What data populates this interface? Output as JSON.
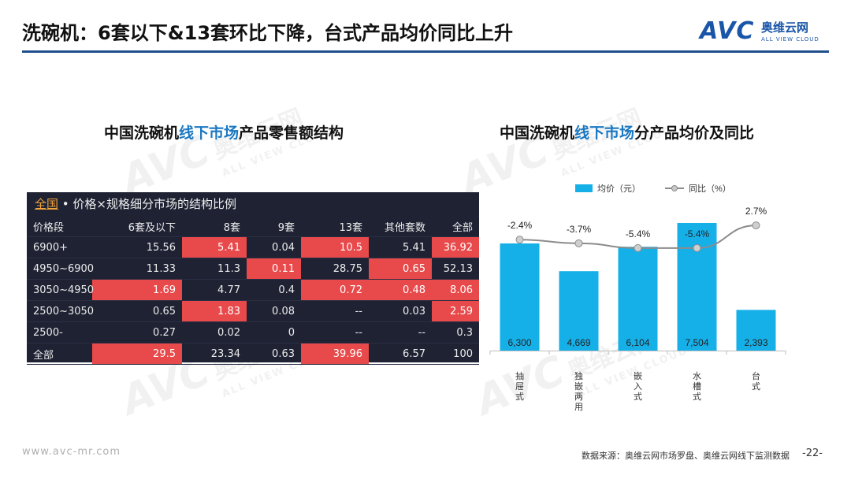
{
  "header": {
    "title": "洗碗机：6套以下&13套环比下降，台式产品均价同比上升",
    "logo_mark": "AVC",
    "logo_cn": "奥维云网",
    "logo_en": "ALL VIEW CLOUD"
  },
  "watermark": {
    "mark": "AVC",
    "cn": "奥维云网",
    "en": "ALL VIEW CLOUD"
  },
  "left_section": {
    "title_pre": "中国洗碗机",
    "title_hl": "线下市场",
    "title_post": "产品零售额结构"
  },
  "right_section": {
    "title_pre": "中国洗碗机",
    "title_hl": "线下市场",
    "title_post": "分产品均价及同比"
  },
  "table": {
    "scope_tag": "全国",
    "caption": " • 价格×规格细分市场的结构比例",
    "columns": [
      "价格段",
      "6套及以下",
      "8套",
      "9套",
      "13套",
      "其他套数",
      "全部"
    ],
    "rows": [
      {
        "cells": [
          "6900+",
          "15.56",
          "5.41",
          "0.04",
          "10.5",
          "5.41",
          "36.92"
        ],
        "hot": [
          false,
          false,
          true,
          false,
          true,
          false,
          true
        ]
      },
      {
        "cells": [
          "4950~6900",
          "11.33",
          "11.3",
          "0.11",
          "28.75",
          "0.65",
          "52.13"
        ],
        "hot": [
          false,
          false,
          false,
          true,
          false,
          true,
          false
        ]
      },
      {
        "cells": [
          "3050~4950",
          "1.69",
          "4.77",
          "0.4",
          "0.72",
          "0.48",
          "8.06"
        ],
        "hot": [
          false,
          true,
          false,
          false,
          true,
          true,
          true
        ]
      },
      {
        "cells": [
          "2500~3050",
          "0.65",
          "1.83",
          "0.08",
          "--",
          "0.03",
          "2.59"
        ],
        "hot": [
          false,
          false,
          true,
          false,
          false,
          false,
          true
        ]
      },
      {
        "cells": [
          "2500-",
          "0.27",
          "0.02",
          "0",
          "--",
          "--",
          "0.3"
        ],
        "hot": [
          false,
          false,
          false,
          false,
          false,
          false,
          false
        ]
      },
      {
        "cells": [
          "全部",
          "29.5",
          "23.34",
          "0.63",
          "39.96",
          "6.57",
          "100"
        ],
        "hot": [
          false,
          true,
          false,
          false,
          true,
          false,
          false
        ]
      }
    ]
  },
  "chart_data": {
    "type": "bar",
    "categories": [
      "抽屉式",
      "独嵌两用",
      "嵌入式",
      "水槽式",
      "台式"
    ],
    "series": [
      {
        "name": "均价（元）",
        "values": [
          6300,
          4669,
          6104,
          7504,
          2393
        ],
        "labels": [
          "6,300",
          "4,669",
          "6,104",
          "7,504",
          "2,393"
        ],
        "color": "#16b0e8"
      },
      {
        "name": "同比（%）",
        "type": "line",
        "values": [
          -2.4,
          -3.7,
          -5.4,
          -5.4,
          2.7
        ],
        "labels": [
          "-2.4%",
          "-3.7%",
          "-5.4%",
          "-5.4%",
          "2.7%"
        ],
        "color": "#8c8c8c"
      }
    ],
    "legend": "top",
    "grid": false
  },
  "footer": {
    "url": "www.avc-mr.com",
    "source": "数据来源：奥维云网市场罗盘、奥维云网线下监测数据",
    "page": "-22-"
  }
}
